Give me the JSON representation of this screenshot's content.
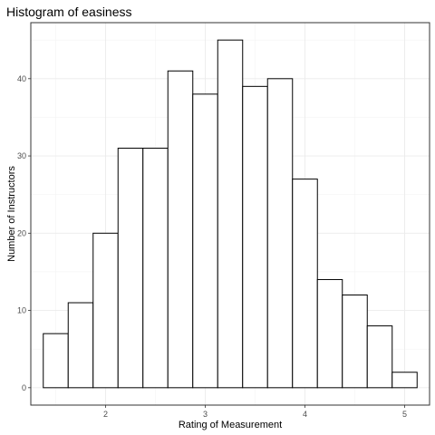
{
  "chart_data": {
    "type": "bar",
    "title": "Histogram of easiness",
    "xlabel": "Rating of Measurement",
    "ylabel": "Number of Instructors",
    "bin_width": 0.25,
    "bins": [
      {
        "start": 1.375,
        "end": 1.625,
        "count": 7
      },
      {
        "start": 1.625,
        "end": 1.875,
        "count": 11
      },
      {
        "start": 1.875,
        "end": 2.125,
        "count": 20
      },
      {
        "start": 2.125,
        "end": 2.375,
        "count": 31
      },
      {
        "start": 2.375,
        "end": 2.625,
        "count": 31
      },
      {
        "start": 2.625,
        "end": 2.875,
        "count": 41
      },
      {
        "start": 2.875,
        "end": 3.125,
        "count": 38
      },
      {
        "start": 3.125,
        "end": 3.375,
        "count": 45
      },
      {
        "start": 3.375,
        "end": 3.625,
        "count": 39
      },
      {
        "start": 3.625,
        "end": 3.875,
        "count": 40
      },
      {
        "start": 3.875,
        "end": 4.125,
        "count": 27
      },
      {
        "start": 4.125,
        "end": 4.375,
        "count": 14
      },
      {
        "start": 4.375,
        "end": 4.625,
        "count": 12
      },
      {
        "start": 4.625,
        "end": 4.875,
        "count": 8
      },
      {
        "start": 4.875,
        "end": 5.125,
        "count": 2
      }
    ],
    "xlim": [
      1.25,
      5.25
    ],
    "ylim": [
      -2.25,
      47.25
    ],
    "xticks": [
      2,
      3,
      4,
      5
    ],
    "xtick_labels": [
      "2",
      "3",
      "4",
      "5"
    ],
    "yticks": [
      0,
      10,
      20,
      30,
      40
    ],
    "ytick_labels": [
      "0",
      "10",
      "20",
      "30",
      "40"
    ],
    "grid": true,
    "theme": "bw",
    "bar_fill": "#ffffff",
    "bar_outline": "#000000"
  }
}
